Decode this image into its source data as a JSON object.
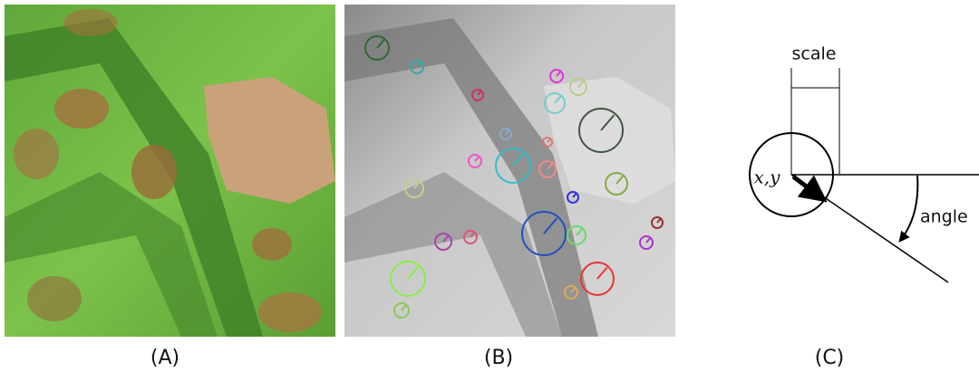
{
  "panels": [
    {
      "label": "(A)"
    },
    {
      "label": "(B)"
    },
    {
      "label": "(C)"
    }
  ],
  "diagram": {
    "scale_label": "scale",
    "position_label": "x,y",
    "angle_label": "angle"
  }
}
